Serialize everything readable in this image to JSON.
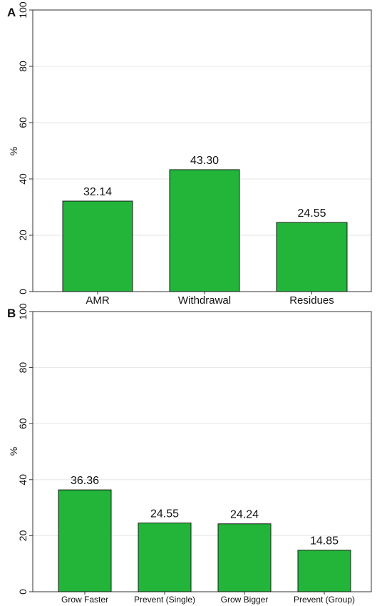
{
  "panel_labels": [
    "A",
    "B"
  ],
  "colors": {
    "bar_fill": "#22b53a",
    "bar_stroke": "#1c1c1c",
    "grid": "#e6e6e6",
    "axis": "#333333",
    "text": "#111111"
  },
  "chart_data": [
    {
      "type": "bar",
      "panel": "A",
      "title": "",
      "xlabel": "",
      "ylabel": "%",
      "ylim": [
        0,
        100
      ],
      "yticks": [
        0,
        20,
        40,
        60,
        80,
        100
      ],
      "grid": true,
      "categories": [
        "AMR",
        "Withdrawal",
        "Residues"
      ],
      "values": [
        32.14,
        43.3,
        24.55
      ],
      "data_labels": [
        "32.14",
        "43.30",
        "24.55"
      ]
    },
    {
      "type": "bar",
      "panel": "B",
      "title": "",
      "xlabel": "",
      "ylabel": "%",
      "ylim": [
        0,
        100
      ],
      "yticks": [
        0,
        20,
        40,
        60,
        80,
        100
      ],
      "grid": true,
      "categories": [
        "Grow Faster",
        "Prevent (Single)",
        "Grow Bigger",
        "Prevent (Group)"
      ],
      "values": [
        36.36,
        24.55,
        24.24,
        14.85
      ],
      "data_labels": [
        "36.36",
        "24.55",
        "24.24",
        "14.85"
      ]
    }
  ]
}
